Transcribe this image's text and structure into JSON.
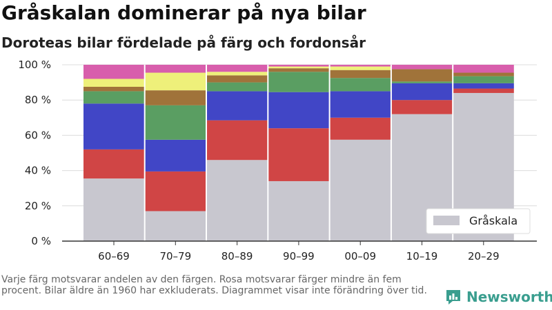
{
  "chart_data": {
    "type": "bar",
    "stacked": true,
    "title": "Gråskalan dominerar på nya bilar",
    "subtitle": "Doroteas bilar fördelade på färg och fordonsår",
    "categories": [
      "60–69",
      "70–79",
      "80–89",
      "90–99",
      "00–09",
      "10–19",
      "20–29"
    ],
    "ylim": [
      0,
      100
    ],
    "yticks": [
      0,
      20,
      40,
      60,
      80,
      100
    ],
    "ytick_labels": [
      "0 %",
      "20 %",
      "40 %",
      "60 %",
      "80 %",
      "100 %"
    ],
    "grid": true,
    "legend": {
      "position": "bottom-right",
      "entries": [
        "Gråskala"
      ]
    },
    "series": [
      {
        "name": "Gråskala",
        "color": "#c8c7cf",
        "values": [
          35.5,
          17,
          46,
          34,
          57.5,
          72,
          84
        ]
      },
      {
        "color": "#d04545",
        "values": [
          16.5,
          22.5,
          22.5,
          30,
          12.5,
          8,
          2.5
        ]
      },
      {
        "color": "#4146c6",
        "values": [
          26,
          18,
          16.5,
          20.5,
          15,
          9.5,
          3
        ]
      },
      {
        "color": "#5a9e62",
        "values": [
          7,
          19.5,
          5,
          11.5,
          7.5,
          1,
          4
        ]
      },
      {
        "color": "#a0733a",
        "values": [
          2.5,
          8.5,
          4,
          2,
          4.5,
          7,
          2
        ]
      },
      {
        "color": "#eef07a",
        "values": [
          4.5,
          10,
          2,
          1,
          2,
          0,
          0
        ]
      },
      {
        "color": "#d85eac",
        "values": [
          8,
          4.5,
          4,
          1,
          1,
          2.5,
          4.5
        ]
      }
    ]
  },
  "footnote": "Varje färg motsvarar andelen av den färgen. Rosa motsvarar färger mindre än fem procent. Bilar äldre än 1960 har exkluderats. Diagrammet visar inte förändring över tid.",
  "brand": {
    "name": "Newsworthy",
    "icon": "newsworthy-logo-icon",
    "color": "#3a9e8f"
  }
}
